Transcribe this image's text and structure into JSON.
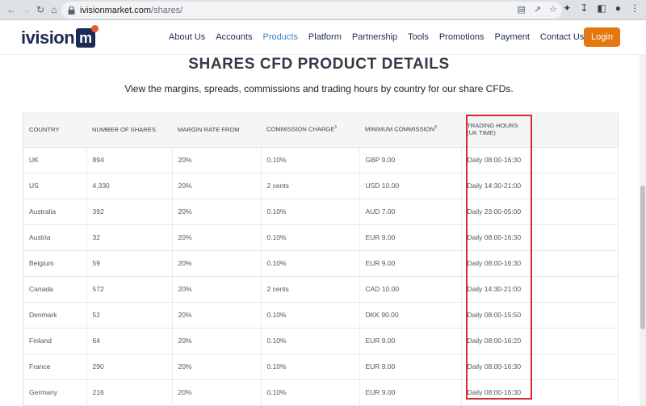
{
  "browser": {
    "url_host": "ivisionmarket.com",
    "url_path": "/shares/"
  },
  "header": {
    "logo_text": "ivision",
    "logo_mark": "m",
    "nav": [
      "About Us",
      "Accounts",
      "Products",
      "Platform",
      "Partnership",
      "Tools",
      "Promotions",
      "Payment",
      "Contact Us"
    ],
    "active_nav": "Products",
    "login_label": "Login",
    "accent_color": "#e4770f",
    "brand_color": "#1b2a55"
  },
  "main": {
    "title": "SHARES CFD PRODUCT DETAILS",
    "subtitle": "View the margins, spreads, commissions and trading hours by country for our share CFDs."
  },
  "table": {
    "headers": {
      "country": "COUNTRY",
      "shares": "NUMBER OF SHARES",
      "margin": "MARGIN RATE FROM",
      "commission": "COMMISSION CHARGE",
      "commission_sup": "1",
      "min_commission": "MINIMUM COMMISSION",
      "min_commission_sup": "2",
      "hours_line1": "TRADING HOURS",
      "hours_line2": "(UK TIME)"
    },
    "rows": [
      {
        "country": "UK",
        "shares": "894",
        "margin": "20%",
        "commission": "0.10%",
        "min": "GBP 9.00",
        "hours": "Daily 08:00-16:30"
      },
      {
        "country": "US",
        "shares": "4,330",
        "margin": "20%",
        "commission": "2 cents",
        "min": "USD 10.00",
        "hours": "Daily 14:30-21:00"
      },
      {
        "country": "Australia",
        "shares": "392",
        "margin": "20%",
        "commission": "0.10%",
        "min": "AUD 7.00",
        "hours": "Daily 23:00-05:00"
      },
      {
        "country": "Austria",
        "shares": "32",
        "margin": "20%",
        "commission": "0.10%",
        "min": "EUR 9.00",
        "hours": "Daily 08:00-16:30"
      },
      {
        "country": "Belgium",
        "shares": "59",
        "margin": "20%",
        "commission": "0.10%",
        "min": "EUR 9.00",
        "hours": "Daily 08:00-16:30"
      },
      {
        "country": "Canada",
        "shares": "572",
        "margin": "20%",
        "commission": "2 cents",
        "min": "CAD 10.00",
        "hours": "Daily 14:30-21:00"
      },
      {
        "country": "Denmark",
        "shares": "52",
        "margin": "20%",
        "commission": "0.10%",
        "min": "DKK 90.00",
        "hours": "Daily 08:00-15:50"
      },
      {
        "country": "Finland",
        "shares": "64",
        "margin": "20%",
        "commission": "0.10%",
        "min": "EUR 9.00",
        "hours": "Daily 08:00-16:20"
      },
      {
        "country": "France",
        "shares": "290",
        "margin": "20%",
        "commission": "0.10%",
        "min": "EUR 9.00",
        "hours": "Daily 08:00-16:30"
      },
      {
        "country": "Germany",
        "shares": "216",
        "margin": "20%",
        "commission": "0.10%",
        "min": "EUR 9.00",
        "hours": "Daily 08:00-16:30"
      }
    ]
  },
  "highlight_color": "#d92b2b"
}
